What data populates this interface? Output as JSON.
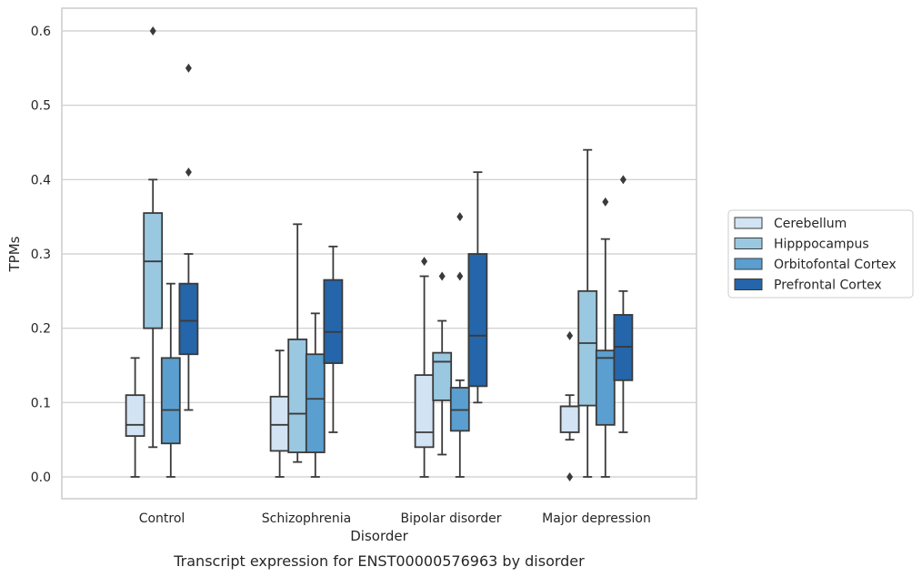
{
  "chart_data": {
    "type": "box",
    "caption": "Transcript expression for ENST00000576963 by disorder",
    "xlabel": "Disorder",
    "ylabel": "TPMs",
    "ylim": [
      -0.03,
      0.63
    ],
    "yticks": [
      "0.0",
      "0.1",
      "0.2",
      "0.3",
      "0.4",
      "0.5",
      "0.6"
    ],
    "grid": true,
    "legend_position": "right",
    "categories": [
      "Control",
      "Schizophrenia",
      "Bipolar disorder",
      "Major depression"
    ],
    "series": [
      {
        "name": "Cerebellum",
        "color": "#d2e3f3",
        "boxes": [
          {
            "whisker_low": 0.0,
            "q1": 0.055,
            "median": 0.07,
            "q3": 0.11,
            "whisker_high": 0.16,
            "outliers": []
          },
          {
            "whisker_low": 0.0,
            "q1": 0.035,
            "median": 0.07,
            "q3": 0.108,
            "whisker_high": 0.17,
            "outliers": []
          },
          {
            "whisker_low": 0.0,
            "q1": 0.04,
            "median": 0.06,
            "q3": 0.137,
            "whisker_high": 0.27,
            "outliers": [
              0.29
            ]
          },
          {
            "whisker_low": 0.05,
            "q1": 0.06,
            "median": 0.095,
            "q3": 0.095,
            "whisker_high": 0.11,
            "outliers": [
              0.19,
              0.0
            ]
          }
        ]
      },
      {
        "name": "Hipppocampus",
        "color": "#9ac8e0",
        "boxes": [
          {
            "whisker_low": 0.04,
            "q1": 0.2,
            "median": 0.29,
            "q3": 0.355,
            "whisker_high": 0.4,
            "outliers": [
              0.6
            ]
          },
          {
            "whisker_low": 0.02,
            "q1": 0.033,
            "median": 0.085,
            "q3": 0.185,
            "whisker_high": 0.34,
            "outliers": []
          },
          {
            "whisker_low": 0.03,
            "q1": 0.103,
            "median": 0.155,
            "q3": 0.167,
            "whisker_high": 0.21,
            "outliers": [
              0.27
            ]
          },
          {
            "whisker_low": 0.0,
            "q1": 0.096,
            "median": 0.18,
            "q3": 0.25,
            "whisker_high": 0.44,
            "outliers": []
          }
        ]
      },
      {
        "name": "Orbitofontal Cortex",
        "color": "#5a9fcf",
        "boxes": [
          {
            "whisker_low": 0.0,
            "q1": 0.045,
            "median": 0.09,
            "q3": 0.16,
            "whisker_high": 0.26,
            "outliers": []
          },
          {
            "whisker_low": 0.0,
            "q1": 0.033,
            "median": 0.105,
            "q3": 0.165,
            "whisker_high": 0.22,
            "outliers": []
          },
          {
            "whisker_low": 0.0,
            "q1": 0.062,
            "median": 0.09,
            "q3": 0.12,
            "whisker_high": 0.13,
            "outliers": [
              0.27,
              0.35
            ]
          },
          {
            "whisker_low": 0.0,
            "q1": 0.07,
            "median": 0.16,
            "q3": 0.17,
            "whisker_high": 0.32,
            "outliers": [
              0.37
            ]
          }
        ]
      },
      {
        "name": "Prefrontal Cortex",
        "color": "#2565a9",
        "boxes": [
          {
            "whisker_low": 0.09,
            "q1": 0.165,
            "median": 0.21,
            "q3": 0.26,
            "whisker_high": 0.3,
            "outliers": [
              0.41,
              0.55
            ]
          },
          {
            "whisker_low": 0.06,
            "q1": 0.153,
            "median": 0.195,
            "q3": 0.265,
            "whisker_high": 0.31,
            "outliers": []
          },
          {
            "whisker_low": 0.1,
            "q1": 0.122,
            "median": 0.19,
            "q3": 0.3,
            "whisker_high": 0.41,
            "outliers": []
          },
          {
            "whisker_low": 0.06,
            "q1": 0.13,
            "median": 0.175,
            "q3": 0.218,
            "whisker_high": 0.25,
            "outliers": [
              0.4
            ]
          }
        ]
      }
    ]
  }
}
